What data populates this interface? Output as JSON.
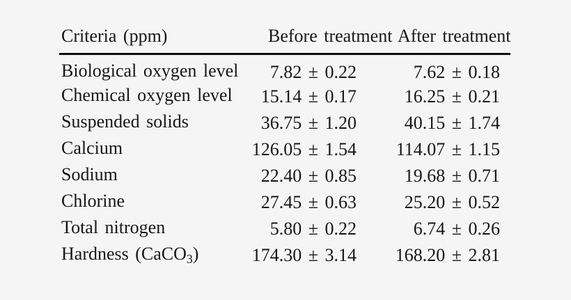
{
  "colors": {
    "background": "#f5f5f5",
    "text": "#171717",
    "header_rule": "#0e0e0e"
  },
  "table": {
    "columns": [
      {
        "label": "Criteria (ppm)"
      },
      {
        "label": "Before treatment"
      },
      {
        "label": "After treatment"
      }
    ],
    "rows": [
      {
        "criteria": {
          "pre": "Biological oxygen level",
          "sub": "",
          "post": ""
        },
        "before": "7.82 ± 0.22",
        "after": "7.62 ± 0.18"
      },
      {
        "criteria": {
          "pre": "Chemical oxygen level",
          "sub": "",
          "post": ""
        },
        "before": "15.14 ± 0.17",
        "after": "16.25 ± 0.21"
      },
      {
        "criteria": {
          "pre": "Suspended solids",
          "sub": "",
          "post": ""
        },
        "before": "36.75 ± 1.20",
        "after": "40.15 ± 1.74"
      },
      {
        "criteria": {
          "pre": "Calcium",
          "sub": "",
          "post": ""
        },
        "before": "126.05 ± 1.54",
        "after": "114.07 ± 1.15"
      },
      {
        "criteria": {
          "pre": "Sodium",
          "sub": "",
          "post": ""
        },
        "before": "22.40 ± 0.85",
        "after": "19.68 ± 0.71"
      },
      {
        "criteria": {
          "pre": "Chlorine",
          "sub": "",
          "post": ""
        },
        "before": "27.45 ± 0.63",
        "after": "25.20 ± 0.52"
      },
      {
        "criteria": {
          "pre": "Total nitrogen",
          "sub": "",
          "post": ""
        },
        "before": "5.80 ± 0.22",
        "after": "6.74 ± 0.26"
      },
      {
        "criteria": {
          "pre": "Hardness (CaCO",
          "sub": "3",
          "post": ")"
        },
        "before": "174.30 ± 3.14",
        "after": "168.20 ± 2.81"
      }
    ]
  },
  "chart_data": {
    "type": "table",
    "title": "",
    "categories": [
      "Biological oxygen level",
      "Chemical oxygen level",
      "Suspended solids",
      "Calcium",
      "Sodium",
      "Chlorine",
      "Total nitrogen",
      "Hardness (CaCO3)"
    ],
    "series": [
      {
        "name": "Before treatment",
        "values": [
          7.82,
          15.14,
          36.75,
          126.05,
          22.4,
          27.45,
          5.8,
          174.3
        ],
        "errors": [
          0.22,
          0.17,
          1.2,
          1.54,
          0.85,
          0.63,
          0.22,
          3.14
        ]
      },
      {
        "name": "After treatment",
        "values": [
          7.62,
          16.25,
          40.15,
          114.07,
          19.68,
          25.2,
          6.74,
          168.2
        ],
        "errors": [
          0.18,
          0.21,
          1.74,
          1.15,
          0.71,
          0.52,
          0.26,
          2.81
        ]
      }
    ],
    "unit": "ppm"
  }
}
